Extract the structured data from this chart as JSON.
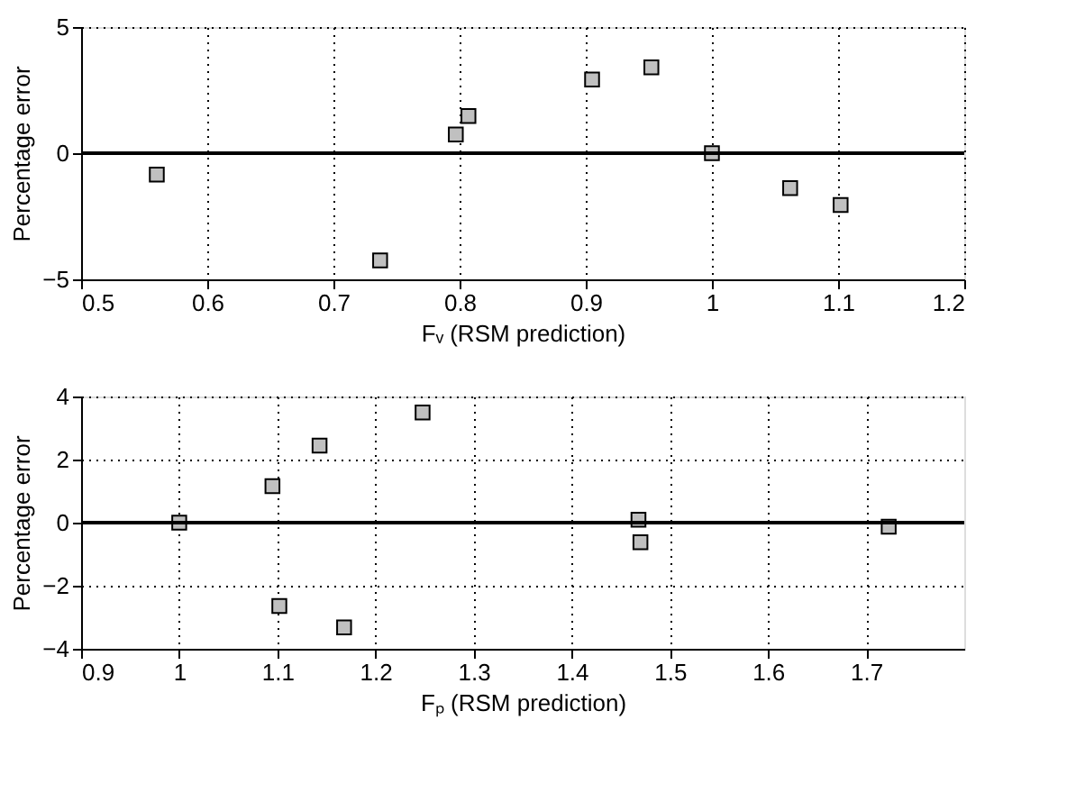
{
  "chart_data": [
    {
      "type": "scatter",
      "xlabel": "Fᵥ (RSM prediction)",
      "ylabel": "Percentage error",
      "x": [
        0.56,
        0.737,
        0.797,
        0.807,
        0.905,
        0.952,
        1.0,
        1.062,
        1.102
      ],
      "series": [
        {
          "color": "#c0c0c0",
          "values": [
            -0.85,
            -4.25,
            0.74,
            1.47,
            2.92,
            3.4,
            0.0,
            -1.38,
            -2.05
          ]
        }
      ],
      "xlim": [
        0.5,
        1.2
      ],
      "xticks": [
        0.5,
        0.6,
        0.7,
        0.8,
        0.9,
        1,
        1.1,
        1.2
      ],
      "ylim": [
        -5,
        5
      ],
      "yticks": [
        -5,
        0,
        5
      ],
      "grid": true,
      "marker": "square",
      "ref_lines": [
        {
          "axis": "y",
          "value": 0,
          "color": "#000000"
        }
      ]
    },
    {
      "type": "scatter",
      "xlabel": "Fₚ (RSM prediction)",
      "ylabel": "Percentage error",
      "x": [
        1.0,
        1.095,
        1.102,
        1.143,
        1.168,
        1.248,
        1.468,
        1.47,
        1.723
      ],
      "series": [
        {
          "color": "#c0c0c0",
          "values": [
            0.0,
            1.16,
            -2.64,
            2.44,
            -3.32,
            3.49,
            0.09,
            -0.62,
            -0.13
          ]
        }
      ],
      "xlim": [
        0.9,
        1.8
      ],
      "xticks": [
        0.9,
        1,
        1.1,
        1.2,
        1.3,
        1.4,
        1.5,
        1.6,
        1.7
      ],
      "ylim": [
        -4,
        4
      ],
      "yticks": [
        -4,
        -2,
        0,
        2,
        4
      ],
      "grid": true,
      "marker": "square",
      "ref_lines": [
        {
          "axis": "y",
          "value": 0,
          "color": "#000000"
        }
      ]
    }
  ]
}
